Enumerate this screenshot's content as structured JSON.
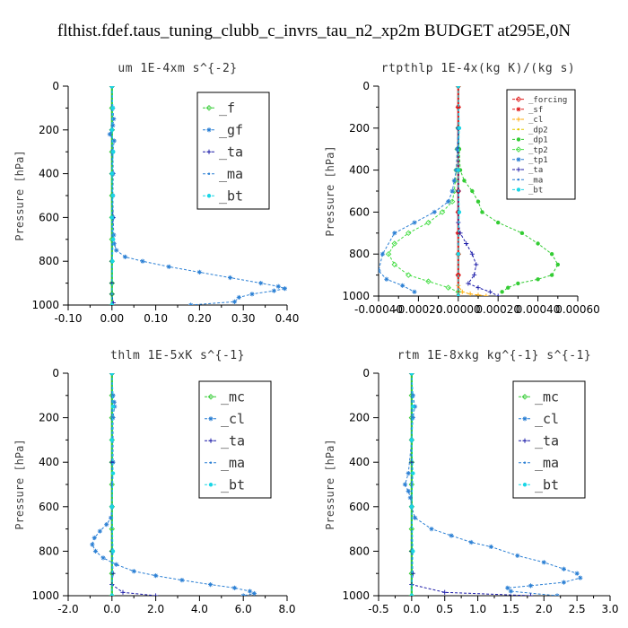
{
  "title": "flthist.fdef.taus_tuning_clubb_c_invrs_tau_n2_xp2m  BUDGET at295E,0N",
  "colors": {
    "green": "#33cc33",
    "blue": "#2a7fd4",
    "navy": "#1a1aa8",
    "cyan": "#19d6e6",
    "red": "#e01a1a",
    "orange": "#ffaa00",
    "yellow": "#e6c800",
    "lime": "#44dd44"
  },
  "chart_data": [
    {
      "type": "line",
      "title": "um   1E-4xm s^{-2}",
      "xlabel": "",
      "ylabel": "Pressure [hPa]",
      "xlim": [
        -0.1,
        0.4
      ],
      "ylim": [
        1000,
        0
      ],
      "xticks": [
        "-0.10",
        "0.00",
        "0.10",
        "0.20",
        "0.30",
        "0.40"
      ],
      "yticks": [
        "0",
        "200",
        "400",
        "600",
        "800",
        "1000"
      ],
      "grid": false,
      "legend": "top-right",
      "legend_entries": [
        "_f",
        "_gf",
        "_ta",
        "_ma",
        "_bt"
      ],
      "series": [
        {
          "name": "_f",
          "color": "green",
          "x": [
            0,
            0,
            0,
            0,
            0,
            0,
            0,
            0,
            0,
            0,
            0,
            0
          ],
          "y": [
            0,
            100,
            200,
            300,
            400,
            500,
            600,
            700,
            800,
            900,
            950,
            1000
          ]
        },
        {
          "name": "_gf",
          "color": "blue",
          "x": [
            0,
            0.002,
            0.004,
            0.002,
            -0.005,
            0.005,
            0.002,
            0.003,
            0.002,
            0.003,
            0.004,
            0.005,
            0.01,
            0.03,
            0.07,
            0.13,
            0.2,
            0.27,
            0.34,
            0.38,
            0.395,
            0.37,
            0.32,
            0.29,
            0.28,
            0.18
          ],
          "y": [
            0,
            100,
            150,
            180,
            220,
            250,
            300,
            400,
            500,
            600,
            680,
            720,
            750,
            780,
            800,
            825,
            850,
            875,
            900,
            915,
            925,
            935,
            950,
            965,
            985,
            1000
          ]
        },
        {
          "name": "_ta",
          "color": "navy",
          "x": [
            0,
            0,
            0,
            0.002,
            0,
            0,
            0,
            0.003,
            0
          ],
          "y": [
            0,
            200,
            400,
            600,
            800,
            900,
            950,
            990,
            1000
          ]
        },
        {
          "name": "_ma",
          "color": "blue",
          "x": [
            0,
            0,
            0,
            0,
            0,
            0
          ],
          "y": [
            0,
            200,
            400,
            600,
            800,
            1000
          ]
        },
        {
          "name": "_bt",
          "color": "cyan",
          "x": [
            0,
            0.002,
            0,
            0.003,
            0,
            0.002,
            0,
            0.003,
            0.001,
            0
          ],
          "y": [
            0,
            100,
            200,
            300,
            400,
            500,
            600,
            700,
            800,
            1000
          ]
        }
      ]
    },
    {
      "type": "line",
      "title": "rtpthlp   1E-4x(kg K)/(kg s)",
      "xlabel": "",
      "ylabel": "Pressure [hPa]",
      "xlim": [
        -0.0004,
        0.0006
      ],
      "ylim": [
        1000,
        0
      ],
      "xticks": [
        "-0.00040",
        "-0.00020",
        "0.00000",
        "0.00020",
        "0.00040",
        "0.00060"
      ],
      "yticks": [
        "0",
        "200",
        "400",
        "600",
        "800",
        "1000"
      ],
      "grid": false,
      "legend": "top-right",
      "legend_entries": [
        "_forcing",
        "_sf",
        "_cl",
        "_dp2",
        "_dp1",
        "_tp2",
        "_tp1",
        "_ta",
        "_ma",
        "_bt"
      ],
      "series": [
        {
          "name": "_forcing",
          "color": "red",
          "x": [
            0,
            0,
            0,
            0,
            0,
            0,
            0,
            0,
            0,
            0,
            0
          ],
          "y": [
            0,
            100,
            200,
            300,
            400,
            500,
            600,
            700,
            800,
            900,
            1000
          ]
        },
        {
          "name": "_sf",
          "color": "red",
          "x": [
            0,
            0,
            0,
            0,
            0,
            0,
            0,
            0,
            0,
            0,
            0
          ],
          "y": [
            0,
            100,
            200,
            300,
            400,
            500,
            600,
            700,
            800,
            900,
            1000
          ]
        },
        {
          "name": "_cl",
          "color": "orange",
          "x": [
            0,
            0,
            0,
            0,
            2e-05,
            6e-05,
            0.0001,
            0.00014
          ],
          "y": [
            0,
            400,
            800,
            950,
            980,
            990,
            995,
            1000
          ]
        },
        {
          "name": "_dp2",
          "color": "yellow",
          "x": [
            0,
            0,
            0,
            0,
            0
          ],
          "y": [
            0,
            250,
            500,
            750,
            1000
          ]
        },
        {
          "name": "_dp1",
          "color": "green",
          "x": [
            0,
            5e-06,
            1e-05,
            3e-05,
            7e-05,
            0.0001,
            0.00012,
            0.0002,
            0.00032,
            0.0004,
            0.00047,
            0.0005,
            0.00047,
            0.0004,
            0.0003,
            0.00025,
            0.00022
          ],
          "y": [
            200,
            300,
            400,
            450,
            500,
            550,
            600,
            650,
            700,
            750,
            800,
            850,
            900,
            920,
            940,
            960,
            980
          ]
        },
        {
          "name": "_tp2",
          "color": "lime",
          "x": [
            0,
            -5e-06,
            -1e-05,
            -1.5e-05,
            -2e-05,
            -3e-05,
            -8e-05,
            -0.00015,
            -0.00025,
            -0.00032,
            -0.00035,
            -0.00032,
            -0.00025,
            -0.00015,
            -5e-05,
            0
          ],
          "y": [
            200,
            300,
            400,
            450,
            500,
            550,
            600,
            650,
            700,
            750,
            800,
            850,
            900,
            930,
            960,
            980
          ]
        },
        {
          "name": "_tp1",
          "color": "blue",
          "x": [
            0,
            -5e-06,
            -1e-05,
            -2e-05,
            -3e-05,
            -5e-05,
            -0.00012,
            -0.00022,
            -0.00032,
            -0.00038,
            -0.0004,
            -0.00036,
            -0.00028,
            -0.00022
          ],
          "y": [
            200,
            300,
            400,
            450,
            500,
            550,
            600,
            650,
            700,
            800,
            880,
            920,
            950,
            980
          ]
        },
        {
          "name": "_ta",
          "color": "navy",
          "x": [
            0,
            0,
            0,
            1e-05,
            4e-05,
            7e-05,
            9e-05,
            8e-05,
            5e-05,
            0.0001,
            0.00016,
            0.0002
          ],
          "y": [
            200,
            500,
            650,
            700,
            750,
            800,
            850,
            900,
            940,
            960,
            980,
            1000
          ]
        },
        {
          "name": "_ma",
          "color": "blue",
          "x": [
            0,
            0,
            0,
            0,
            0
          ],
          "y": [
            0,
            250,
            500,
            750,
            1000
          ]
        },
        {
          "name": "_bt",
          "color": "cyan",
          "x": [
            0,
            5e-06,
            0,
            5e-06,
            0,
            0
          ],
          "y": [
            0,
            200,
            400,
            600,
            800,
            1000
          ]
        }
      ]
    },
    {
      "type": "line",
      "title": "thlm   1E-5xK s^{-1}",
      "xlabel": "",
      "ylabel": "Pressure [hPa]",
      "xlim": [
        -2.0,
        8.0
      ],
      "ylim": [
        1000,
        0
      ],
      "xticks": [
        "-2.0",
        "0.0",
        "2.0",
        "4.0",
        "6.0",
        "8.0"
      ],
      "yticks": [
        "0",
        "200",
        "400",
        "600",
        "800",
        "1000"
      ],
      "grid": false,
      "legend": "top-right",
      "legend_entries": [
        "_mc",
        "_cl",
        "_ta",
        "_ma",
        "_bt"
      ],
      "series": [
        {
          "name": "_mc",
          "color": "green",
          "x": [
            0,
            0,
            0,
            0,
            0,
            0,
            0,
            0,
            0,
            0,
            0
          ],
          "y": [
            0,
            100,
            200,
            300,
            400,
            500,
            600,
            700,
            800,
            900,
            1000
          ]
        },
        {
          "name": "_cl",
          "color": "blue",
          "x": [
            0,
            0.05,
            0.1,
            0.12,
            0.05,
            0.05,
            0.0,
            -0.05,
            -0.25,
            -0.55,
            -0.8,
            -0.9,
            -0.75,
            -0.4,
            0.2,
            1.0,
            2.0,
            3.2,
            4.5,
            5.6,
            6.3,
            6.5,
            6.0
          ],
          "y": [
            0,
            100,
            130,
            150,
            200,
            400,
            600,
            650,
            680,
            710,
            740,
            770,
            800,
            830,
            860,
            890,
            910,
            930,
            950,
            965,
            980,
            990,
            1000
          ]
        },
        {
          "name": "_ta",
          "color": "navy",
          "x": [
            0,
            0,
            0,
            0.05,
            0,
            0.5,
            2.0
          ],
          "y": [
            0,
            400,
            800,
            900,
            950,
            985,
            1000
          ]
        },
        {
          "name": "_ma",
          "color": "blue",
          "x": [
            0,
            0,
            0,
            0,
            0
          ],
          "y": [
            0,
            250,
            500,
            750,
            1000
          ]
        },
        {
          "name": "_bt",
          "color": "cyan",
          "x": [
            0,
            0.05,
            0,
            0.05,
            0,
            0.05,
            0
          ],
          "y": [
            0,
            150,
            300,
            450,
            600,
            800,
            1000
          ]
        }
      ]
    },
    {
      "type": "line",
      "title": "rtm   1E-8xkg kg^{-1} s^{-1}",
      "xlabel": "",
      "ylabel": "Pressure [hPa]",
      "xlim": [
        -0.5,
        3.0
      ],
      "ylim": [
        1000,
        0
      ],
      "xticks": [
        "-0.5",
        "0.0",
        "0.5",
        "1.0",
        "1.5",
        "2.0",
        "2.5",
        "3.0"
      ],
      "yticks": [
        "0",
        "200",
        "400",
        "600",
        "800",
        "1000"
      ],
      "grid": false,
      "legend": "top-right",
      "legend_entries": [
        "_mc",
        "_cl",
        "_ta",
        "_ma",
        "_bt"
      ],
      "series": [
        {
          "name": "_mc",
          "color": "green",
          "x": [
            0,
            0,
            0,
            0,
            0,
            0,
            0,
            0,
            0,
            0,
            0
          ],
          "y": [
            0,
            100,
            200,
            300,
            400,
            500,
            600,
            700,
            800,
            900,
            1000
          ]
        },
        {
          "name": "_cl",
          "color": "blue",
          "x": [
            0,
            0.02,
            0.05,
            0.02,
            0.0,
            -0.05,
            -0.1,
            -0.05,
            -0.02,
            0.0,
            0.05,
            0.3,
            0.6,
            0.9,
            1.2,
            1.6,
            2.0,
            2.3,
            2.5,
            2.55,
            2.3,
            1.8,
            1.45,
            1.5,
            2.2
          ],
          "y": [
            0,
            100,
            150,
            200,
            300,
            450,
            500,
            530,
            560,
            600,
            650,
            700,
            730,
            760,
            780,
            820,
            850,
            880,
            900,
            920,
            940,
            955,
            965,
            980,
            1000
          ]
        },
        {
          "name": "_ta",
          "color": "navy",
          "x": [
            0,
            0,
            0,
            0.02,
            0,
            0.5,
            1.8
          ],
          "y": [
            0,
            400,
            800,
            900,
            950,
            985,
            1000
          ]
        },
        {
          "name": "_ma",
          "color": "blue",
          "x": [
            0,
            0,
            0,
            0,
            0
          ],
          "y": [
            0,
            250,
            500,
            750,
            1000
          ]
        },
        {
          "name": "_bt",
          "color": "cyan",
          "x": [
            0,
            0.02,
            0,
            0.02,
            0,
            0.02,
            0
          ],
          "y": [
            0,
            150,
            300,
            450,
            600,
            800,
            1000
          ]
        }
      ]
    }
  ]
}
